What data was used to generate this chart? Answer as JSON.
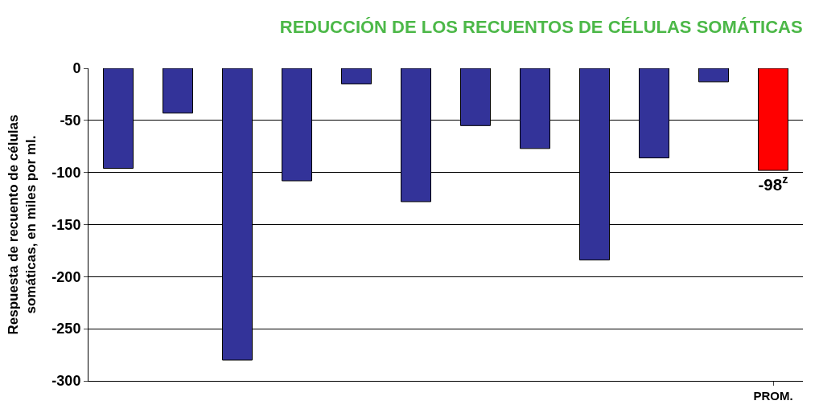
{
  "chart_data": {
    "type": "bar",
    "title": "REDUCCIÓN DE LOS RECUENTOS DE CÉLULAS SOMÁTICAS",
    "ylabel": "Respuesta de recuento de células\nsomáticas, en miles por ml.",
    "categories": [
      null,
      null,
      null,
      null,
      null,
      null,
      null,
      null,
      null,
      null,
      null,
      "PROM."
    ],
    "values": [
      -96,
      -43,
      -280,
      -108,
      -15,
      -128,
      -55,
      -77,
      -184,
      -86,
      -13,
      -98
    ],
    "colors": [
      "#333399",
      "#333399",
      "#333399",
      "#333399",
      "#333399",
      "#333399",
      "#333399",
      "#333399",
      "#333399",
      "#333399",
      "#333399",
      "#ff0000"
    ],
    "value_labels": [
      null,
      null,
      null,
      null,
      null,
      null,
      null,
      null,
      null,
      null,
      null,
      "-98$^{z}$"
    ],
    "ylim": [
      -300,
      0
    ],
    "yticks": [
      -300,
      -250,
      -200,
      -150,
      -100,
      -50,
      0
    ],
    "grid": "y"
  }
}
